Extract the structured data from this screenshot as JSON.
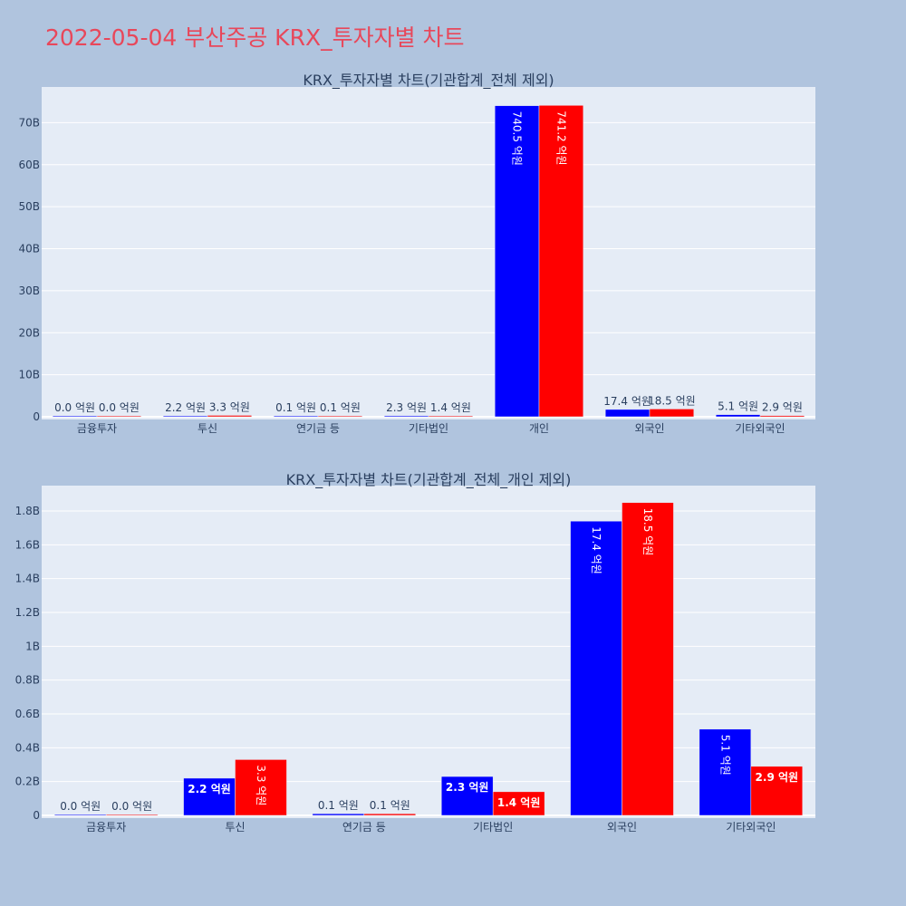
{
  "page_title": "2022-05-04 부산주공 KRX_투자자별 차트",
  "colors": {
    "buy": "#0000ff",
    "sell": "#ff0000",
    "plot_bg": "#e5ecf6",
    "paper_bg": "#b0c4de"
  },
  "chart_data": [
    {
      "type": "bar",
      "title": "KRX_투자자별 차트(기관합계_전체 제외)",
      "categories": [
        "금융투자",
        "투신",
        "연기금 등",
        "기타법인",
        "개인",
        "외국인",
        "기타외국인"
      ],
      "series": [
        {
          "values": [
            0.0,
            0.22,
            0.01,
            0.23,
            74.05,
            1.74,
            0.51
          ],
          "labels": [
            "0.0 억원",
            "2.2 억원",
            "0.1 억원",
            "2.3 억원",
            "740.5 억원",
            "17.4 억원",
            "5.1 억원"
          ]
        },
        {
          "values": [
            0.0,
            0.33,
            0.01,
            0.14,
            74.12,
            1.85,
            0.29
          ],
          "labels": [
            "0.0 억원",
            "3.3 억원",
            "0.1 억원",
            "1.4 억원",
            "741.2 억원",
            "18.5 억원",
            "2.9 억원"
          ]
        }
      ],
      "ylim": [
        0,
        78.5
      ],
      "yticks": [
        0,
        10,
        20,
        30,
        40,
        50,
        60,
        70
      ],
      "ytick_labels": [
        "0",
        "10B",
        "20B",
        "30B",
        "40B",
        "50B",
        "60B",
        "70B"
      ],
      "grid": true
    },
    {
      "type": "bar",
      "title": "KRX_투자자별 차트(기관합계_전체_개인 제외)",
      "categories": [
        "금융투자",
        "투신",
        "연기금 등",
        "기타법인",
        "외국인",
        "기타외국인"
      ],
      "series": [
        {
          "values": [
            0.0,
            0.22,
            0.01,
            0.23,
            1.74,
            0.51
          ],
          "labels": [
            "0.0 억원",
            "2.2 억원",
            "0.1 억원",
            "2.3 억원",
            "17.4 억원",
            "5.1 억원"
          ]
        },
        {
          "values": [
            0.0,
            0.33,
            0.01,
            0.14,
            1.85,
            0.29
          ],
          "labels": [
            "0.0 억원",
            "3.3 억원",
            "0.1 억원",
            "1.4 억원",
            "18.5 억원",
            "2.9 억원"
          ]
        }
      ],
      "ylim": [
        0,
        1.95
      ],
      "yticks": [
        0,
        0.2,
        0.4,
        0.6,
        0.8,
        1.0,
        1.2,
        1.4,
        1.6,
        1.8
      ],
      "ytick_labels": [
        "0",
        "0.2B",
        "0.4B",
        "0.6B",
        "0.8B",
        "1B",
        "1.2B",
        "1.4B",
        "1.6B",
        "1.8B"
      ],
      "grid": true
    }
  ]
}
